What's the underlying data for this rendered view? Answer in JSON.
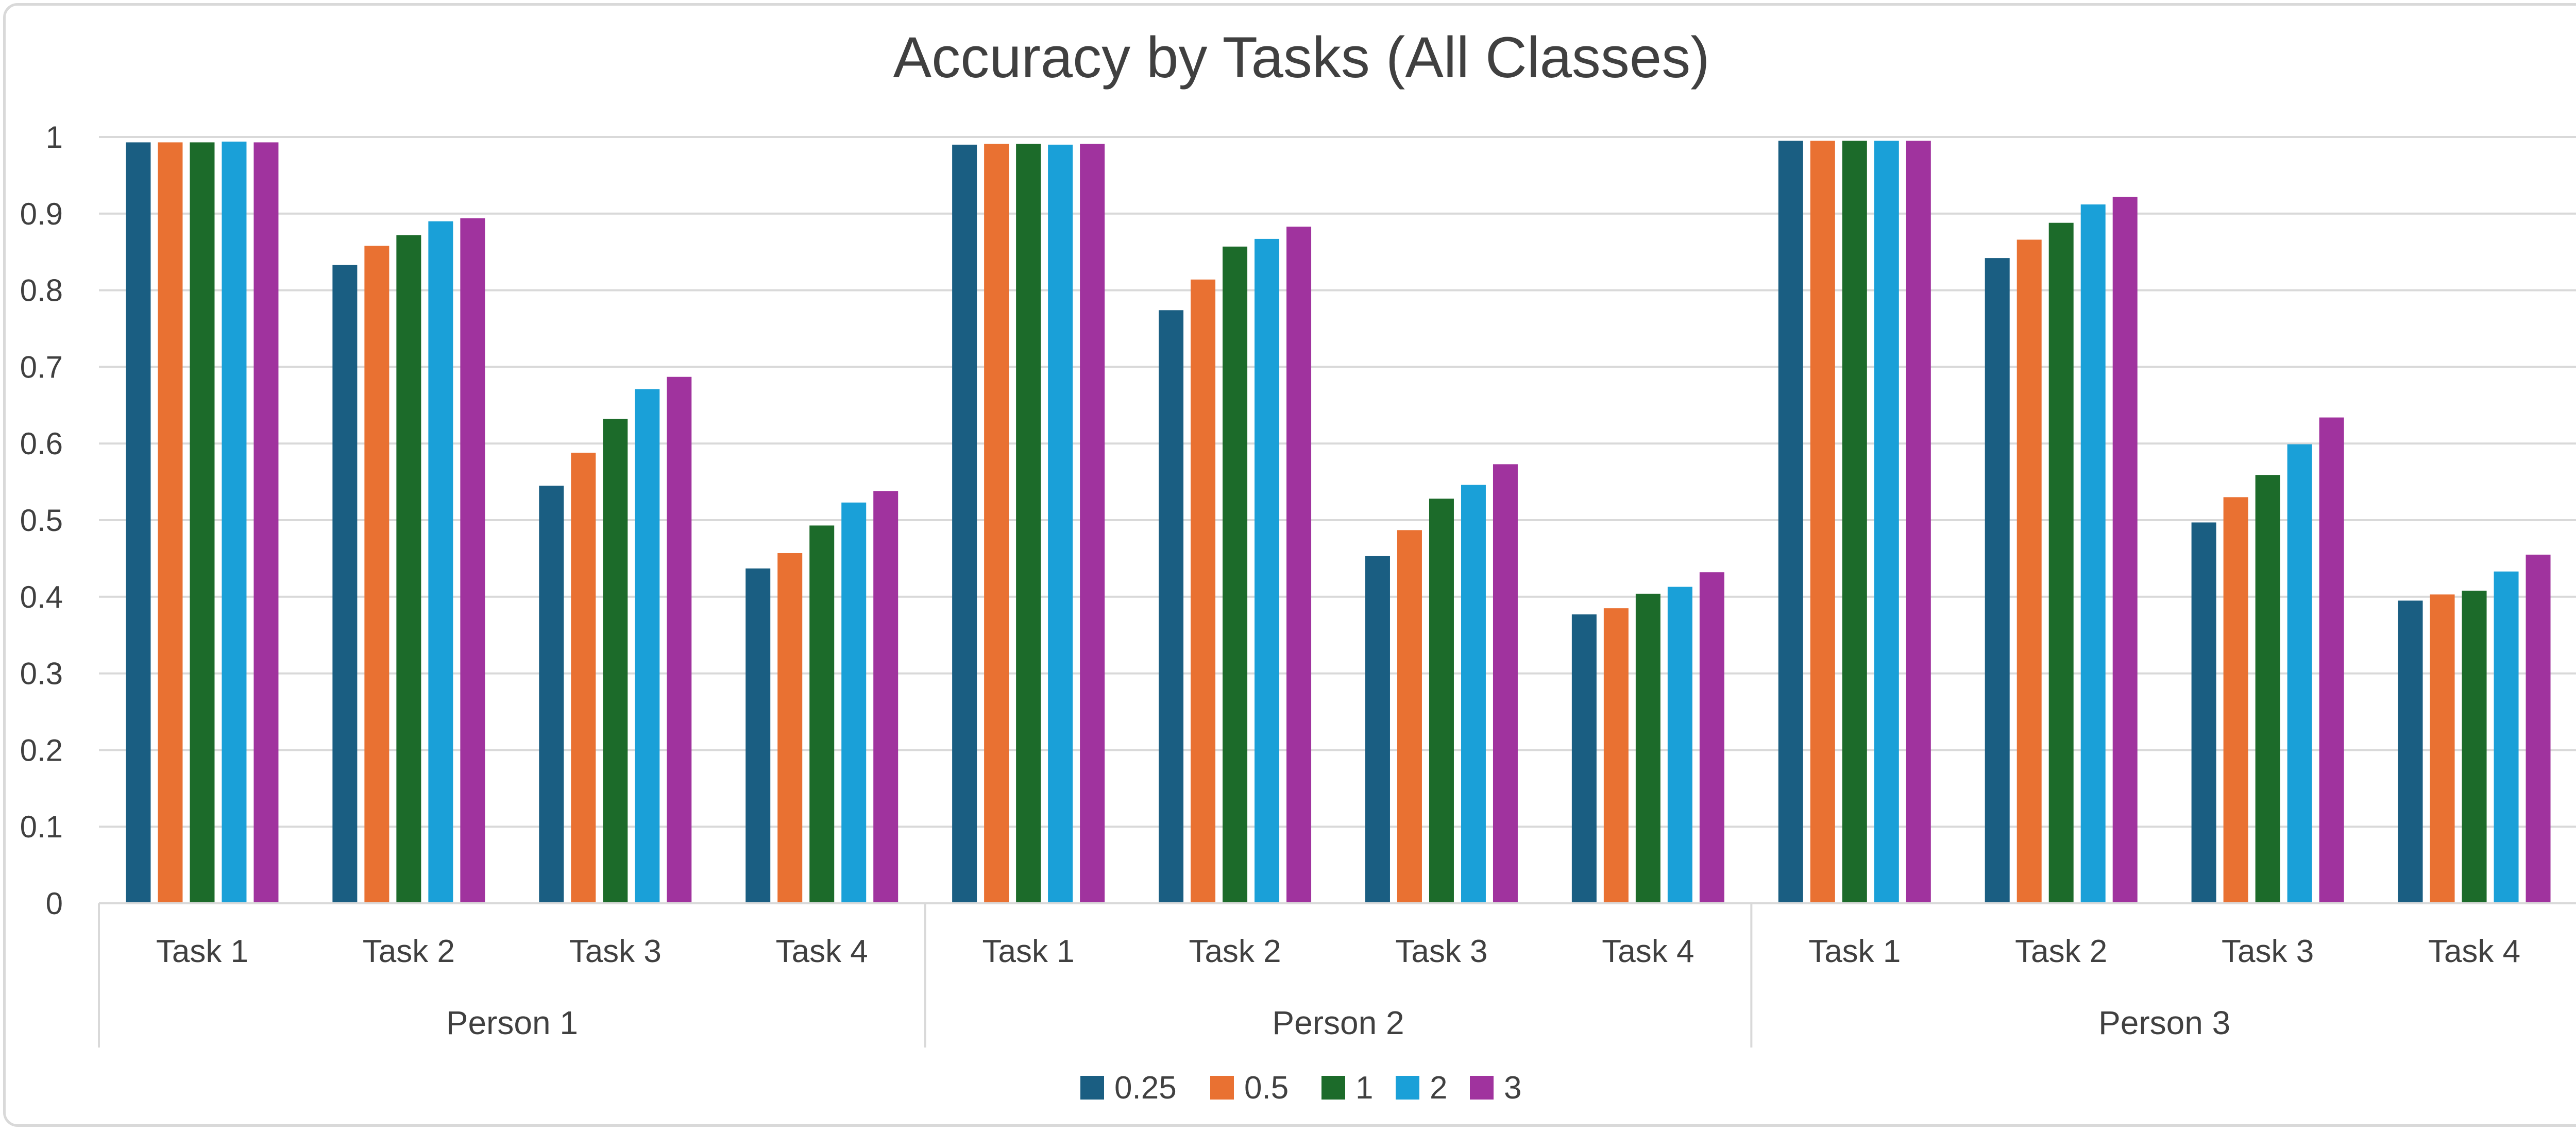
{
  "chart_data": {
    "type": "bar",
    "title": "Accuracy by Tasks (All Classes)",
    "xlabel": "",
    "ylabel": "",
    "ylim": [
      0,
      1
    ],
    "yticks": [
      0,
      0.1,
      0.2,
      0.3,
      0.4,
      0.5,
      0.6,
      0.7,
      0.8,
      0.9,
      1
    ],
    "ytick_labels": [
      "0",
      "0.1",
      "0.2",
      "0.3",
      "0.4",
      "0.5",
      "0.6",
      "0.7",
      "0.8",
      "0.9",
      "1"
    ],
    "grid": true,
    "legend_position": "bottom",
    "groups": [
      {
        "label": "Person 1",
        "categories": [
          "Task 1",
          "Task 2",
          "Task 3",
          "Task 4"
        ]
      },
      {
        "label": "Person 2",
        "categories": [
          "Task 1",
          "Task 2",
          "Task 3",
          "Task 4"
        ]
      },
      {
        "label": "Person 3",
        "categories": [
          "Task 1",
          "Task 2",
          "Task 3",
          "Task 4"
        ]
      }
    ],
    "categories": [
      "Person 1 / Task 1",
      "Person 1 / Task 2",
      "Person 1 / Task 3",
      "Person 1 / Task 4",
      "Person 2 / Task 1",
      "Person 2 / Task 2",
      "Person 2 / Task 3",
      "Person 2 / Task 4",
      "Person 3 / Task 1",
      "Person 3 / Task 2",
      "Person 3 / Task 3",
      "Person 3 / Task 4"
    ],
    "series": [
      {
        "name": "0.25",
        "color": "#1a5e82",
        "values": [
          0.993,
          0.833,
          0.545,
          0.437,
          0.99,
          0.774,
          0.453,
          0.377,
          0.995,
          0.842,
          0.497,
          0.395
        ]
      },
      {
        "name": "0.5",
        "color": "#e97132",
        "values": [
          0.993,
          0.858,
          0.588,
          0.457,
          0.991,
          0.814,
          0.487,
          0.385,
          0.995,
          0.866,
          0.53,
          0.403
        ]
      },
      {
        "name": "1",
        "color": "#1c6b2a",
        "values": [
          0.993,
          0.872,
          0.632,
          0.493,
          0.991,
          0.857,
          0.528,
          0.404,
          0.995,
          0.888,
          0.559,
          0.408
        ]
      },
      {
        "name": "2",
        "color": "#1aa0d8",
        "values": [
          0.994,
          0.89,
          0.671,
          0.523,
          0.99,
          0.867,
          0.546,
          0.413,
          0.995,
          0.912,
          0.599,
          0.433
        ]
      },
      {
        "name": "3",
        "color": "#a0339e",
        "values": [
          0.993,
          0.894,
          0.687,
          0.538,
          0.991,
          0.883,
          0.573,
          0.432,
          0.995,
          0.922,
          0.634,
          0.455
        ]
      }
    ]
  }
}
